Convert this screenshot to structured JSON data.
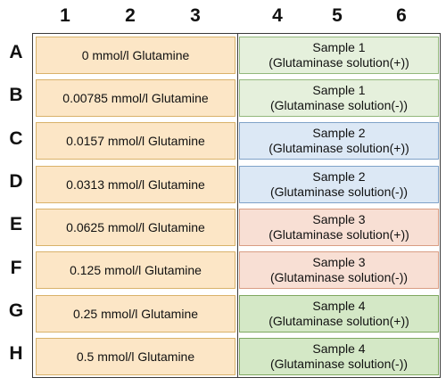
{
  "columns": [
    "1",
    "2",
    "3",
    "4",
    "5",
    "6"
  ],
  "rows": [
    "A",
    "B",
    "C",
    "D",
    "E",
    "F",
    "G",
    "H"
  ],
  "standards": [
    "0 mmol/l Glutamine",
    "0.00785 mmol/l Glutamine",
    "0.0157 mmol/l Glutamine",
    "0.0313 mmol/l Glutamine",
    "0.0625 mmol/l Glutamine",
    "0.125 mmol/l Glutamine",
    "0.25 mmol/l Glutamine",
    "0.5 mmol/l Glutamine"
  ],
  "samples": [
    {
      "name": "Sample 1",
      "treatment": "(Glutaminase solution(+))"
    },
    {
      "name": "Sample 1",
      "treatment": "(Glutaminase solution(-))"
    },
    {
      "name": "Sample 2",
      "treatment": "(Glutaminase solution(+))"
    },
    {
      "name": "Sample 2",
      "treatment": "(Glutaminase solution(-))"
    },
    {
      "name": "Sample 3",
      "treatment": "(Glutaminase solution(+))"
    },
    {
      "name": "Sample 3",
      "treatment": "(Glutaminase solution(-))"
    },
    {
      "name": "Sample 4",
      "treatment": "(Glutaminase solution(+))"
    },
    {
      "name": "Sample 4",
      "treatment": "(Glutaminase solution(-))"
    }
  ],
  "colors": {
    "standard_fill": "#fce6c6",
    "sample1_fill": "#e5f0dc",
    "sample2_fill": "#dce8f5",
    "sample3_fill": "#f8dfd4",
    "sample4_fill": "#d4e8c6",
    "border": "#3a3a3a"
  }
}
